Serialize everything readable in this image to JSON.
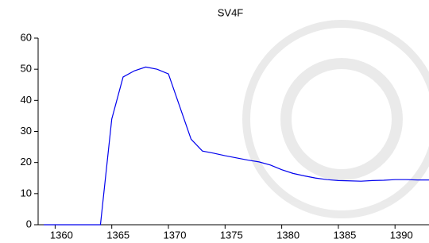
{
  "chart_data": {
    "type": "line",
    "title": "SV4F",
    "x": [
      1359,
      1360,
      1361,
      1362,
      1363,
      1364,
      1365,
      1366,
      1367,
      1368,
      1369,
      1370,
      1371,
      1372,
      1373,
      1374,
      1375,
      1376,
      1377,
      1378,
      1379,
      1380,
      1381,
      1382,
      1383,
      1384,
      1385,
      1386,
      1387,
      1388,
      1389,
      1390,
      1391,
      1392,
      1393
    ],
    "series": [
      {
        "name": "SV4F",
        "color": "#0000ee",
        "values": [
          0,
          0,
          0,
          0,
          0,
          0,
          34,
          47.5,
          49.5,
          50.7,
          50,
          48.5,
          38,
          27.5,
          23.7,
          23,
          22.2,
          21.5,
          20.8,
          20.2,
          19.2,
          17.7,
          16.5,
          15.7,
          15,
          14.5,
          14.2,
          14.1,
          14,
          14.2,
          14.3,
          14.5,
          14.5,
          14.4,
          14.4
        ]
      }
    ],
    "xlim": [
      1358.5,
      1393
    ],
    "xticks": [
      1360,
      1365,
      1370,
      1375,
      1380,
      1385,
      1390
    ],
    "ylim": [
      0,
      60
    ],
    "yticks": [
      0,
      10,
      20,
      30,
      40,
      50,
      60
    ]
  }
}
